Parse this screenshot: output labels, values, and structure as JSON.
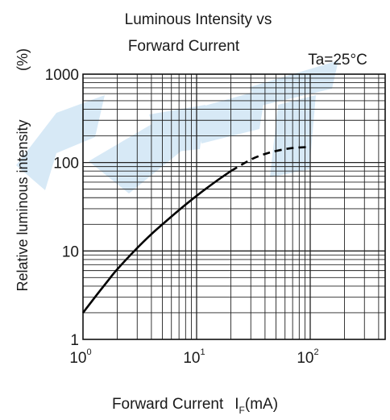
{
  "chart_data": {
    "type": "line",
    "title_lines": [
      "Luminous Intensity vs",
      "Forward Current"
    ],
    "condition": "Ta=25°C",
    "xlabel_main": "Forward Current",
    "xlabel_symbol": "I",
    "xlabel_subscript": "F",
    "xlabel_unit": "(mA)",
    "ylabel": "Relative luminous intensity",
    "ylabel_unit": "(%)",
    "x_scale": "log",
    "y_scale": "log",
    "xlim": [
      1,
      500
    ],
    "ylim": [
      1,
      1000
    ],
    "x_tick_labels": [
      {
        "value": 1,
        "base": "10",
        "exp": "0"
      },
      {
        "value": 10,
        "base": "10",
        "exp": "1"
      },
      {
        "value": 100,
        "base": "10",
        "exp": "2"
      }
    ],
    "y_tick_labels": [
      {
        "value": 1,
        "text": "1"
      },
      {
        "value": 10,
        "text": "10"
      },
      {
        "value": 100,
        "text": "100"
      },
      {
        "value": 1000,
        "text": "1000"
      }
    ],
    "grid": true,
    "series": [
      {
        "style": "solid",
        "x": [
          1,
          1.3,
          1.7,
          2,
          3,
          4,
          5,
          7,
          10,
          15,
          20
        ],
        "y": [
          2,
          3.1,
          4.8,
          6.2,
          10.8,
          15.5,
          20,
          29,
          42,
          62,
          80
        ]
      },
      {
        "style": "dashed",
        "x": [
          20,
          30,
          40,
          50,
          70,
          100
        ],
        "y": [
          80,
          108,
          125,
          135,
          146,
          150
        ]
      }
    ]
  }
}
